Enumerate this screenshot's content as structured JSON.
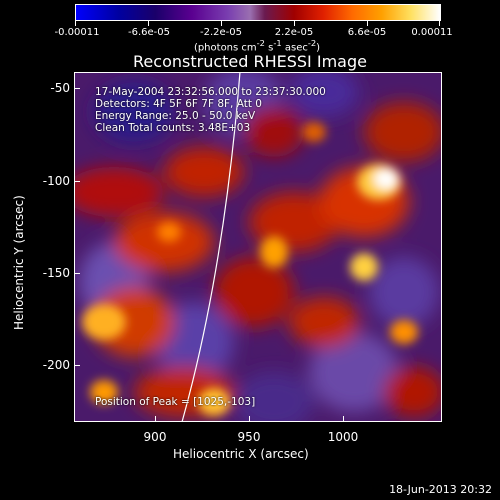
{
  "colorbar": {
    "tick_labels": [
      "-0.00011",
      "-6.6e-05",
      "-2.2e-05",
      "2.2e-05",
      "6.6e-05",
      "0.00011"
    ],
    "units_html": "(photons cm<sup>-2</sup> s<sup>-1</sup> asec<sup>-2</sup>)"
  },
  "title": "Reconstructed RHESSI Image",
  "annotations": {
    "time": "17-May-2004 23:32:56.000 to 23:37:30.000",
    "detectors": "Detectors: 4F 5F 6F 7F 8F, Att 0",
    "energy": "Energy Range: 25.0 - 50.0 keV",
    "clean": "Clean    Total counts: 3.48E+03",
    "peak": "Position of Peak = [1025,-103]"
  },
  "axes": {
    "xlabel": "Heliocentric X (arcsec)",
    "ylabel": "Heliocentric Y (arcsec)",
    "x_ticks": [
      "900",
      "950",
      "1000"
    ],
    "y_ticks": [
      "-50",
      "-100",
      "-150",
      "-200"
    ]
  },
  "footer_date": "18-Jun-2013 20:32"
}
